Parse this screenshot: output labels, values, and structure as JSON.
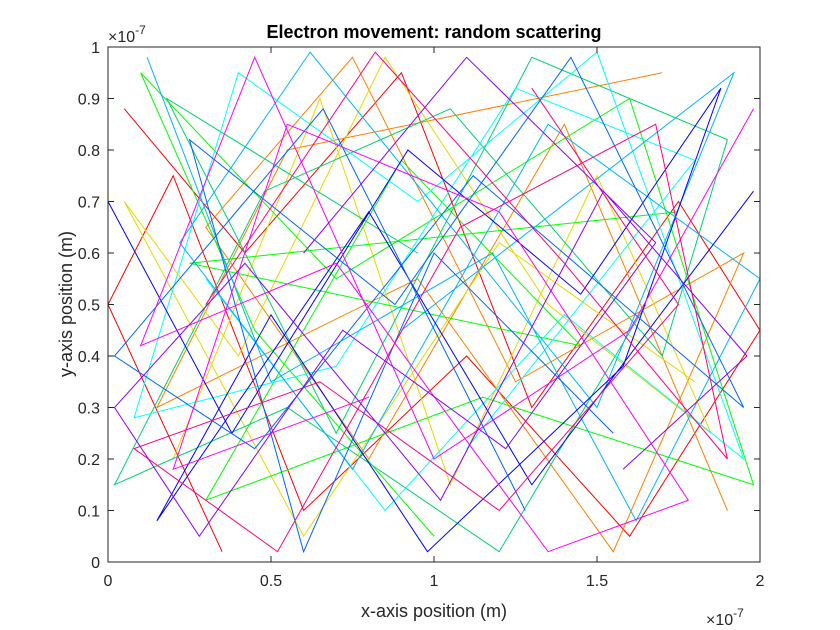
{
  "chart_data": {
    "type": "line",
    "title": "Electron movement: random scattering",
    "x_label": "x-axis position (m)",
    "y_label": "y-axis position (m)",
    "x_multiplier": {
      "base": "×10",
      "exponent": "-7"
    },
    "y_multiplier": {
      "base": "×10",
      "exponent": "-7"
    },
    "xlim": [
      0,
      2
    ],
    "ylim": [
      0,
      1
    ],
    "xticks": [
      0,
      0.5,
      1,
      1.5,
      2
    ],
    "yticks": [
      0,
      0.1,
      0.2,
      0.3,
      0.4,
      0.5,
      0.6,
      0.7,
      0.8,
      0.9,
      1
    ],
    "series": [
      {
        "color": "#ff0000",
        "x": [
          0.05,
          0.42,
          0.9,
          1.3,
          1.75,
          2,
          1.6,
          1.1,
          0.6,
          0.2,
          0,
          0.35
        ],
        "values": [
          0.88,
          0.6,
          0.95,
          0.3,
          0.7,
          0.45,
          0.05,
          0.4,
          0.1,
          0.75,
          0.5,
          0.02
        ]
      },
      {
        "color": "#ff8000",
        "x": [
          1.9,
          1.4,
          0.8,
          0.3,
          0.75,
          1.25,
          1.95,
          1.55,
          0.95,
          0.15,
          0.55,
          1.7
        ],
        "values": [
          0.1,
          0.85,
          0.2,
          0.65,
          0.98,
          0.35,
          0.6,
          0.02,
          0.55,
          0.3,
          0.8,
          0.95
        ]
      },
      {
        "color": "#e6d800",
        "x": [
          0.2,
          0.65,
          1.05,
          1.5,
          1.85,
          1.35,
          0.85,
          0.4,
          0.05,
          0.6,
          1.2,
          1.8
        ],
        "values": [
          0.2,
          0.9,
          0.15,
          0.75,
          0.25,
          0.5,
          0.98,
          0.4,
          0.7,
          0.05,
          0.62,
          0.35
        ]
      },
      {
        "color": "#00ff00",
        "x": [
          1.0,
          0.45,
          0.1,
          0.7,
          1.6,
          1.98,
          1.15,
          0.3,
          0.9,
          1.45,
          0.25,
          1.75
        ],
        "values": [
          0.05,
          0.45,
          0.95,
          0.55,
          0.9,
          0.15,
          0.32,
          0.12,
          0.78,
          0.42,
          0.58,
          0.68
        ]
      },
      {
        "color": "#00d26e",
        "x": [
          1.65,
          1.2,
          0.55,
          0.02,
          0.48,
          1.05,
          1.7,
          1.9,
          1.3,
          0.7,
          0.18,
          0.95
        ],
        "values": [
          0.5,
          0.02,
          0.3,
          0.15,
          0.72,
          0.88,
          0.4,
          0.82,
          0.98,
          0.25,
          0.9,
          0.6
        ]
      },
      {
        "color": "#00ffff",
        "x": [
          0.3,
          0.85,
          1.4,
          1.95,
          1.5,
          0.95,
          0.4,
          0.08,
          0.7,
          1.25,
          1.8,
          1.1
        ],
        "values": [
          0.55,
          0.1,
          0.48,
          0.2,
          0.99,
          0.7,
          0.95,
          0.28,
          0.38,
          0.92,
          0.78,
          0.22
        ]
      },
      {
        "color": "#00b4ff",
        "x": [
          0.12,
          0.5,
          1.18,
          1.62,
          2,
          1.35,
          0.75,
          0.22,
          0.62,
          1.5,
          1.92,
          0.9
        ],
        "values": [
          0.98,
          0.35,
          0.6,
          0.08,
          0.55,
          0.85,
          0.18,
          0.62,
          0.99,
          0.3,
          0.95,
          0.45
        ]
      },
      {
        "color": "#0000ff",
        "x": [
          0.0,
          0.38,
          0.92,
          1.45,
          1.88,
          1.58,
          0.98,
          0.5,
          0.15,
          0.8,
          1.3,
          1.98
        ],
        "values": [
          0.7,
          0.25,
          0.8,
          0.52,
          0.92,
          0.38,
          0.02,
          0.48,
          0.08,
          0.68,
          0.15,
          0.72
        ]
      },
      {
        "color": "#0064ff",
        "x": [
          1.55,
          1.0,
          0.6,
          0.25,
          0.88,
          1.42,
          1.95,
          1.12,
          0.45,
          0.02,
          0.66,
          1.28
        ],
        "values": [
          0.25,
          0.6,
          0.02,
          0.82,
          0.5,
          0.98,
          0.3,
          0.75,
          0.22,
          0.4,
          0.88,
          0.1
        ]
      },
      {
        "color": "#ff00ff",
        "x": [
          0.8,
          0.2,
          0.55,
          1.2,
          1.78,
          1.35,
          0.7,
          0.1,
          0.45,
          1.0,
          1.6,
          1.98
        ],
        "values": [
          0.32,
          0.18,
          0.85,
          0.68,
          0.12,
          0.02,
          0.58,
          0.42,
          0.98,
          0.2,
          0.45,
          0.88
        ]
      },
      {
        "color": "#ff0080",
        "x": [
          1.3,
          1.75,
          1.2,
          0.65,
          0.08,
          0.52,
          1.08,
          1.68,
          1.9,
          1.4,
          0.82,
          0.3
        ],
        "values": [
          0.92,
          0.5,
          0.1,
          0.35,
          0.22,
          0.02,
          0.65,
          0.85,
          0.2,
          0.58,
          0.99,
          0.5
        ]
      },
      {
        "color": "#8c00ff",
        "x": [
          0.6,
          1.1,
          1.68,
          1.22,
          0.72,
          0.28,
          0.02,
          0.42,
          1.02,
          1.52,
          1.96,
          1.58
        ],
        "values": [
          0.6,
          0.98,
          0.62,
          0.22,
          0.45,
          0.05,
          0.3,
          0.58,
          0.12,
          0.72,
          0.4,
          0.18
        ]
      }
    ]
  }
}
